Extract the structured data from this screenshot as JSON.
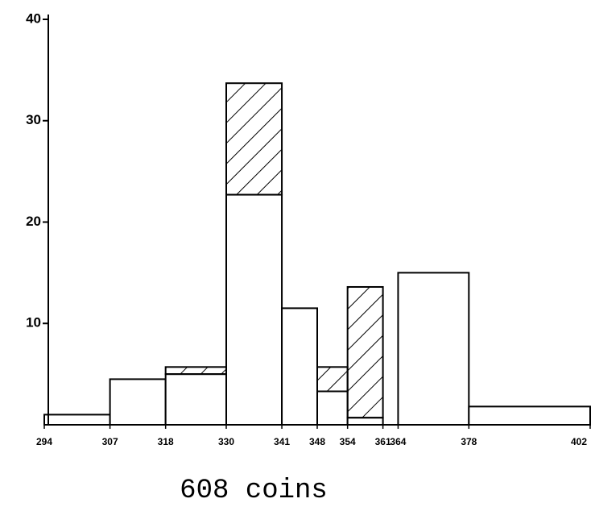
{
  "chart_data": {
    "type": "histogram",
    "caption": "608 coins",
    "bins": [
      294,
      307,
      318,
      330,
      341,
      348,
      354,
      361,
      364,
      378,
      402
    ],
    "series": [
      {
        "color": "#ffffff",
        "values": [
          1,
          4.5,
          5,
          22.7,
          11.5,
          3.3,
          0.7,
          0,
          15,
          1.8
        ]
      },
      {
        "color": "#000000",
        "pattern": "hatch",
        "values": [
          0,
          0,
          0.7,
          11,
          0,
          2.4,
          12.9,
          0,
          0,
          0
        ]
      }
    ],
    "xlim": [
      294,
      402
    ],
    "ylim": [
      0,
      40
    ],
    "yticks": [
      10,
      20,
      30,
      40
    ],
    "xticks": [
      294,
      307,
      318,
      330,
      341,
      348,
      354,
      361,
      364,
      378,
      402
    ]
  }
}
